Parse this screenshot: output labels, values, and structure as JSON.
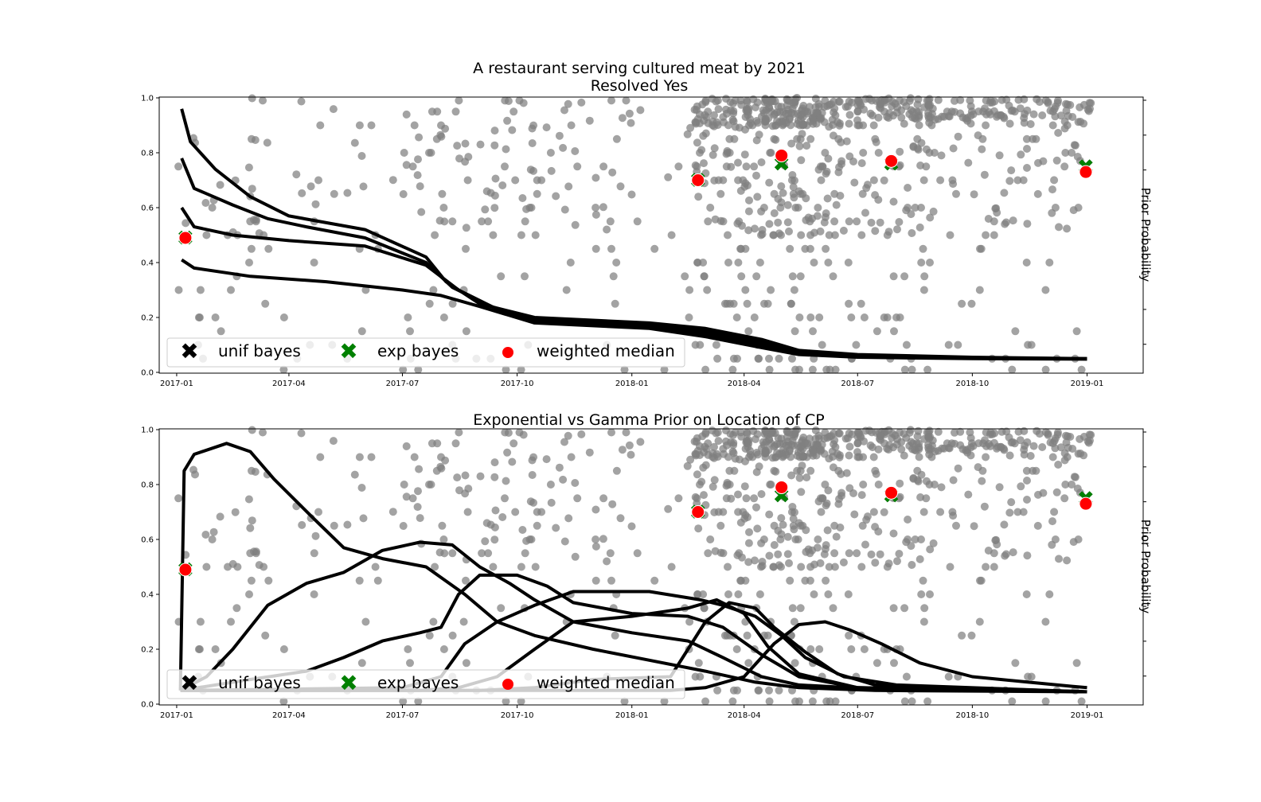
{
  "figure": {
    "title_line1": "A restaurant serving cultured meat by 2021",
    "title_line2": "Resolved Yes"
  },
  "colors": {
    "scatter": "#808080",
    "curve": "#000000",
    "unif_marker": "#000000",
    "exp_marker": "#008000",
    "median_marker": "#ff0000"
  },
  "chart_data": [
    {
      "type": "scatter",
      "title": "",
      "ylabel_right": "Prior Probability",
      "x_ticks": [
        "2017-01",
        "2017-04",
        "2017-07",
        "2017-10",
        "2018-01",
        "2018-04",
        "2018-07",
        "2018-10",
        "2019-01"
      ],
      "y_ticks": [
        "0.0",
        "0.2",
        "0.4",
        "0.6",
        "0.8",
        "1.0"
      ],
      "xlim": [
        "2016-12-18",
        "2019-02-15"
      ],
      "ylim": [
        0,
        1
      ],
      "legend": {
        "placement": "lower-left",
        "entries": [
          "unif bayes",
          "exp bayes",
          "weighted median"
        ]
      },
      "summary_points": [
        {
          "x": "2017-01-08",
          "median": 0.49,
          "exp": 0.49,
          "unif": 0.49
        },
        {
          "x": "2018-02-23",
          "median": 0.7,
          "exp": 0.7,
          "unif": 0.7
        },
        {
          "x": "2018-05-01",
          "median": 0.79,
          "exp": 0.76,
          "unif": 0.76
        },
        {
          "x": "2018-07-28",
          "median": 0.77,
          "exp": 0.76,
          "unif": 0.76
        },
        {
          "x": "2018-12-31",
          "median": 0.73,
          "exp": 0.75,
          "unif": 0.75
        }
      ],
      "curves": [
        {
          "points": [
            [
              "2017-01-05",
              0.96
            ],
            [
              "2017-01-12",
              0.84
            ],
            [
              "2017-02-01",
              0.74
            ],
            [
              "2017-03-01",
              0.64
            ],
            [
              "2017-04-01",
              0.57
            ],
            [
              "2017-06-01",
              0.52
            ],
            [
              "2017-07-20",
              0.42
            ],
            [
              "2017-08-05",
              0.33
            ],
            [
              "2017-09-01",
              0.25
            ],
            [
              "2017-10-15",
              0.2
            ],
            [
              "2018-01-15",
              0.18
            ],
            [
              "2018-03-01",
              0.16
            ],
            [
              "2018-04-15",
              0.12
            ],
            [
              "2018-05-15",
              0.08
            ],
            [
              "2018-07-01",
              0.065
            ],
            [
              "2018-10-01",
              0.055
            ],
            [
              "2019-01-01",
              0.05
            ]
          ]
        },
        {
          "points": [
            [
              "2017-01-05",
              0.78
            ],
            [
              "2017-01-15",
              0.67
            ],
            [
              "2017-02-15",
              0.61
            ],
            [
              "2017-03-15",
              0.56
            ],
            [
              "2017-04-15",
              0.53
            ],
            [
              "2017-06-01",
              0.49
            ],
            [
              "2017-07-20",
              0.4
            ],
            [
              "2017-08-10",
              0.31
            ],
            [
              "2017-09-10",
              0.24
            ],
            [
              "2017-10-15",
              0.19
            ],
            [
              "2018-01-15",
              0.17
            ],
            [
              "2018-03-01",
              0.15
            ],
            [
              "2018-04-15",
              0.11
            ],
            [
              "2018-05-15",
              0.075
            ],
            [
              "2018-07-01",
              0.06
            ],
            [
              "2018-10-01",
              0.053
            ],
            [
              "2019-01-01",
              0.05
            ]
          ]
        },
        {
          "points": [
            [
              "2017-01-05",
              0.6
            ],
            [
              "2017-01-15",
              0.53
            ],
            [
              "2017-02-15",
              0.5
            ],
            [
              "2017-04-01",
              0.48
            ],
            [
              "2017-06-01",
              0.46
            ],
            [
              "2017-07-20",
              0.39
            ],
            [
              "2017-08-15",
              0.3
            ],
            [
              "2017-09-15",
              0.23
            ],
            [
              "2017-10-15",
              0.185
            ],
            [
              "2018-01-15",
              0.165
            ],
            [
              "2018-03-01",
              0.14
            ],
            [
              "2018-04-15",
              0.1
            ],
            [
              "2018-05-15",
              0.07
            ],
            [
              "2018-07-01",
              0.058
            ],
            [
              "2018-10-01",
              0.052
            ],
            [
              "2019-01-01",
              0.049
            ]
          ]
        },
        {
          "points": [
            [
              "2017-01-05",
              0.41
            ],
            [
              "2017-01-15",
              0.38
            ],
            [
              "2017-03-01",
              0.35
            ],
            [
              "2017-05-01",
              0.33
            ],
            [
              "2017-07-01",
              0.3
            ],
            [
              "2017-08-01",
              0.28
            ],
            [
              "2017-09-01",
              0.24
            ],
            [
              "2017-10-15",
              0.18
            ],
            [
              "2018-01-15",
              0.16
            ],
            [
              "2018-03-01",
              0.13
            ],
            [
              "2018-04-15",
              0.09
            ],
            [
              "2018-05-15",
              0.065
            ],
            [
              "2018-07-01",
              0.055
            ],
            [
              "2018-10-01",
              0.05
            ],
            [
              "2019-01-01",
              0.048
            ]
          ]
        }
      ]
    },
    {
      "type": "scatter",
      "title": "Exponential vs Gamma Prior on Location of CP",
      "ylabel_right": "Prior Probability",
      "x_ticks": [
        "2017-01",
        "2017-04",
        "2017-07",
        "2017-10",
        "2018-01",
        "2018-04",
        "2018-07",
        "2018-10",
        "2019-01"
      ],
      "y_ticks": [
        "0.0",
        "0.2",
        "0.4",
        "0.6",
        "0.8",
        "1.0"
      ],
      "xlim": [
        "2016-12-18",
        "2019-02-15"
      ],
      "ylim": [
        0,
        1
      ],
      "legend": {
        "placement": "lower-left",
        "entries": [
          "unif bayes",
          "exp bayes",
          "weighted median"
        ]
      },
      "summary_points": [
        {
          "x": "2017-01-08",
          "median": 0.49,
          "exp": 0.49,
          "unif": 0.49
        },
        {
          "x": "2018-02-23",
          "median": 0.7,
          "exp": 0.7,
          "unif": 0.7
        },
        {
          "x": "2018-05-01",
          "median": 0.79,
          "exp": 0.76,
          "unif": 0.76
        },
        {
          "x": "2018-07-28",
          "median": 0.77,
          "exp": 0.76,
          "unif": 0.76
        },
        {
          "x": "2018-12-31",
          "median": 0.73,
          "exp": 0.75,
          "unif": 0.75
        }
      ],
      "curves": [
        {
          "points": [
            [
              "2017-01-04",
              0.05
            ],
            [
              "2017-01-07",
              0.85
            ],
            [
              "2017-01-15",
              0.91
            ],
            [
              "2017-02-10",
              0.95
            ],
            [
              "2017-03-01",
              0.92
            ],
            [
              "2017-03-20",
              0.82
            ],
            [
              "2017-04-20",
              0.68
            ],
            [
              "2017-05-15",
              0.57
            ],
            [
              "2017-06-15",
              0.53
            ],
            [
              "2017-07-20",
              0.5
            ],
            [
              "2017-08-20",
              0.4
            ],
            [
              "2017-09-15",
              0.3
            ],
            [
              "2017-10-15",
              0.25
            ],
            [
              "2017-12-01",
              0.2
            ],
            [
              "2018-01-15",
              0.16
            ],
            [
              "2018-03-01",
              0.12
            ],
            [
              "2018-04-10",
              0.08
            ],
            [
              "2018-05-15",
              0.06
            ],
            [
              "2018-07-15",
              0.05
            ],
            [
              "2019-01-01",
              0.045
            ]
          ]
        },
        {
          "points": [
            [
              "2017-01-04",
              0.05
            ],
            [
              "2017-01-25",
              0.1
            ],
            [
              "2017-02-15",
              0.2
            ],
            [
              "2017-03-15",
              0.36
            ],
            [
              "2017-04-15",
              0.44
            ],
            [
              "2017-05-15",
              0.48
            ],
            [
              "2017-06-15",
              0.56
            ],
            [
              "2017-07-15",
              0.59
            ],
            [
              "2017-08-10",
              0.58
            ],
            [
              "2017-09-01",
              0.5
            ],
            [
              "2017-09-25",
              0.44
            ],
            [
              "2017-10-15",
              0.38
            ],
            [
              "2017-11-15",
              0.3
            ],
            [
              "2018-01-01",
              0.26
            ],
            [
              "2018-02-15",
              0.23
            ],
            [
              "2018-03-15",
              0.17
            ],
            [
              "2018-04-15",
              0.1
            ],
            [
              "2018-05-15",
              0.07
            ],
            [
              "2018-07-15",
              0.055
            ],
            [
              "2019-01-01",
              0.045
            ]
          ]
        },
        {
          "points": [
            [
              "2017-01-04",
              0.05
            ],
            [
              "2017-03-01",
              0.09
            ],
            [
              "2017-04-15",
              0.12
            ],
            [
              "2017-05-15",
              0.17
            ],
            [
              "2017-06-15",
              0.23
            ],
            [
              "2017-07-15",
              0.26
            ],
            [
              "2017-08-01",
              0.28
            ],
            [
              "2017-08-15",
              0.4
            ],
            [
              "2017-09-01",
              0.47
            ],
            [
              "2017-10-01",
              0.47
            ],
            [
              "2017-10-25",
              0.43
            ],
            [
              "2017-11-15",
              0.37
            ],
            [
              "2018-01-01",
              0.33
            ],
            [
              "2018-02-15",
              0.32
            ],
            [
              "2018-03-15",
              0.28
            ],
            [
              "2018-04-15",
              0.18
            ],
            [
              "2018-05-15",
              0.1
            ],
            [
              "2018-07-01",
              0.06
            ],
            [
              "2019-01-01",
              0.045
            ]
          ]
        },
        {
          "points": [
            [
              "2017-01-04",
              0.05
            ],
            [
              "2017-07-01",
              0.06
            ],
            [
              "2017-08-01",
              0.1
            ],
            [
              "2017-08-20",
              0.22
            ],
            [
              "2017-09-15",
              0.3
            ],
            [
              "2017-10-15",
              0.36
            ],
            [
              "2017-11-15",
              0.41
            ],
            [
              "2018-01-15",
              0.41
            ],
            [
              "2018-02-25",
              0.38
            ],
            [
              "2018-03-15",
              0.36
            ],
            [
              "2018-04-10",
              0.32
            ],
            [
              "2018-05-01",
              0.25
            ],
            [
              "2018-05-20",
              0.17
            ],
            [
              "2018-06-20",
              0.1
            ],
            [
              "2018-08-01",
              0.07
            ],
            [
              "2019-01-01",
              0.045
            ]
          ]
        },
        {
          "points": [
            [
              "2017-01-04",
              0.05
            ],
            [
              "2017-07-15",
              0.05
            ],
            [
              "2017-08-15",
              0.06
            ],
            [
              "2017-09-15",
              0.1
            ],
            [
              "2017-10-15",
              0.2
            ],
            [
              "2017-11-15",
              0.3
            ],
            [
              "2018-01-01",
              0.32
            ],
            [
              "2018-02-15",
              0.35
            ],
            [
              "2018-03-10",
              0.38
            ],
            [
              "2018-04-01",
              0.33
            ],
            [
              "2018-04-20",
              0.21
            ],
            [
              "2018-05-15",
              0.11
            ],
            [
              "2018-07-01",
              0.06
            ],
            [
              "2019-01-01",
              0.045
            ]
          ]
        },
        {
          "points": [
            [
              "2017-01-04",
              0.05
            ],
            [
              "2017-09-01",
              0.05
            ],
            [
              "2017-10-15",
              0.06
            ],
            [
              "2017-12-01",
              0.09
            ],
            [
              "2018-02-01",
              0.1
            ],
            [
              "2018-03-01",
              0.3
            ],
            [
              "2018-03-20",
              0.37
            ],
            [
              "2018-04-10",
              0.35
            ],
            [
              "2018-04-25",
              0.28
            ],
            [
              "2018-05-20",
              0.19
            ],
            [
              "2018-06-15",
              0.11
            ],
            [
              "2018-07-15",
              0.07
            ],
            [
              "2019-01-01",
              0.045
            ]
          ]
        },
        {
          "points": [
            [
              "2017-01-04",
              0.05
            ],
            [
              "2018-02-01",
              0.05
            ],
            [
              "2018-03-01",
              0.06
            ],
            [
              "2018-04-01",
              0.1
            ],
            [
              "2018-04-25",
              0.22
            ],
            [
              "2018-05-15",
              0.29
            ],
            [
              "2018-06-05",
              0.3
            ],
            [
              "2018-06-25",
              0.27
            ],
            [
              "2018-07-20",
              0.22
            ],
            [
              "2018-08-20",
              0.15
            ],
            [
              "2018-10-01",
              0.1
            ],
            [
              "2018-11-15",
              0.08
            ],
            [
              "2018-12-20",
              0.065
            ],
            [
              "2019-01-01",
              0.06
            ]
          ]
        }
      ]
    }
  ]
}
